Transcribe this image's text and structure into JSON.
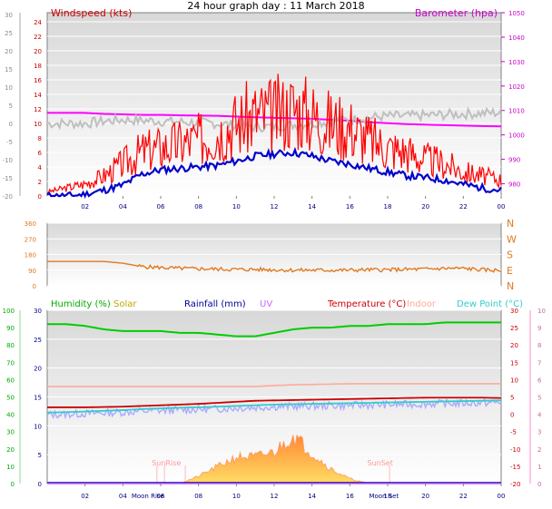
{
  "page": {
    "title": "24 hour graph day : 11 March 2018"
  },
  "colors": {
    "wind": "#ff0000",
    "avg_wind": "#0000cc",
    "baro": "#ff00ff",
    "baro_avg": "#bfbfbf",
    "direction": "#e07820",
    "humidity": "#00cc00",
    "solar": "#ffcc00",
    "rain": "#000099",
    "uv": "#cc66ff",
    "temperature": "#cc0000",
    "indoor": "#ffaa99",
    "dewpoint": "#33cccc",
    "temp_band": "#aaaaff",
    "left_axis_wind": "#cc0000",
    "right_axis_baro": "#cc00cc",
    "dir_axis": "#e07820",
    "hum_axis": "#00aa00",
    "temp_axis": "#cc0000",
    "hour_labels": "#000080"
  },
  "chart_data": [
    {
      "type": "line",
      "x": [
        0,
        1,
        2,
        3,
        4,
        5,
        6,
        7,
        8,
        9,
        10,
        11,
        12,
        13,
        14,
        15,
        16,
        17,
        18,
        19,
        20,
        21,
        22,
        23,
        24
      ],
      "x_tick_labels": [
        "02",
        "04",
        "06",
        "08",
        "10",
        "12",
        "14",
        "16",
        "18",
        "20",
        "22",
        "00"
      ],
      "y_left_label": "Windspeed (kts)",
      "y_left_ticks": [
        0,
        2,
        4,
        6,
        8,
        10,
        12,
        14,
        16,
        18,
        20,
        22,
        24
      ],
      "y_left_range": [
        0,
        25
      ],
      "y_right_label": "Barometer (hpa)",
      "y_right_ticks": [
        980,
        990,
        1000,
        1010,
        1020,
        1030,
        1040,
        1050
      ],
      "y_right_range": [
        975,
        1050
      ],
      "y_outer_ticks": [
        -20,
        -15,
        -10,
        -5,
        0,
        5,
        10,
        15,
        20,
        25,
        30
      ],
      "series": [
        {
          "values": [
            0.5,
            1,
            1.5,
            2.5,
            4,
            5.5,
            6,
            6.5,
            7,
            8,
            9,
            10,
            10,
            11,
            10,
            9,
            8.5,
            7,
            6,
            5.5,
            4.5,
            4,
            3,
            2.5,
            2
          ]
        },
        {
          "values": [
            0,
            0,
            0.2,
            0.8,
            1.5,
            3,
            3.6,
            3.8,
            4,
            4.2,
            4.8,
            5.5,
            5.8,
            6,
            5.5,
            4.8,
            4.4,
            3.8,
            3.3,
            2.8,
            2.5,
            2.2,
            1.6,
            1.1,
            0.8
          ]
        },
        {
          "values": [
            1009,
            1009,
            1009,
            1008.6,
            1008.4,
            1008.2,
            1008.2,
            1008,
            1007.9,
            1007.8,
            1007.5,
            1007.2,
            1007,
            1006.8,
            1006.6,
            1006.2,
            1005.8,
            1005.2,
            1004.8,
            1004.4,
            1004.2,
            1004,
            1003.8,
            1003.6,
            1003.5
          ]
        },
        {
          "values": [
            0,
            0,
            0,
            0.3,
            0.5,
            0.4,
            0.3,
            0.2,
            0.1,
            0,
            -0.3,
            -0.5,
            -0.4,
            -0.2,
            0,
            0.3,
            0.5,
            0.8,
            1,
            1,
            1.1,
            1.2,
            1.3,
            1.4,
            1.5
          ]
        }
      ]
    },
    {
      "type": "line",
      "x": [
        0,
        1,
        2,
        3,
        4,
        5,
        6,
        7,
        8,
        9,
        10,
        11,
        12,
        13,
        14,
        15,
        16,
        17,
        18,
        19,
        20,
        21,
        22,
        23,
        24
      ],
      "x_tick_labels": [
        "02",
        "04",
        "06",
        "08",
        "10",
        "12",
        "14",
        "16",
        "18",
        "20",
        "22",
        "00"
      ],
      "y_left_ticks": [
        0,
        90,
        180,
        270,
        360
      ],
      "y_right_labels": [
        "N",
        "E",
        "S",
        "W",
        "N"
      ],
      "y_range": [
        0,
        360
      ],
      "series": [
        {
          "values": [
            140,
            140,
            140,
            140,
            130,
            110,
            105,
            100,
            98,
            96,
            94,
            94,
            92,
            90,
            90,
            90,
            90,
            92,
            92,
            94,
            96,
            100,
            100,
            92,
            88
          ]
        }
      ]
    },
    {
      "type": "line",
      "x": [
        0,
        1,
        2,
        3,
        4,
        5,
        6,
        7,
        8,
        9,
        10,
        11,
        12,
        13,
        14,
        15,
        16,
        17,
        18,
        19,
        20,
        21,
        22,
        23,
        24
      ],
      "x_tick_labels": [
        "02",
        "04",
        "06",
        "08",
        "10",
        "12",
        "14",
        "16",
        "18",
        "20",
        "22",
        "00"
      ],
      "x_event_labels": [
        "Moon Rise",
        "Moon Set",
        "SunRise",
        "SunSet"
      ],
      "legend": [
        "Humidity (%)",
        "Solar",
        "Rainfall (mm)",
        "UV",
        "Temperature (°C)",
        "Indoor",
        "Dew Point (°C)"
      ],
      "y_outer_ticks": [
        0,
        10,
        20,
        30,
        40,
        50,
        60,
        70,
        80,
        90,
        100
      ],
      "y_inner_ticks": [
        0,
        5,
        10,
        15,
        20,
        25,
        30
      ],
      "y_right_ticks": [
        -20,
        -15,
        -10,
        -5,
        0,
        5,
        10,
        15,
        20,
        25,
        30
      ],
      "y_far_right_ticks": [
        0,
        1,
        2,
        3,
        4,
        5,
        6,
        7,
        8,
        9,
        10
      ],
      "humidity_range": [
        0,
        100
      ],
      "temperature_range": [
        -20,
        30
      ],
      "series": [
        {
          "name": "Humidity (%)",
          "values": [
            92,
            92,
            91,
            89,
            88,
            88,
            88,
            87,
            87,
            86,
            85,
            85,
            87,
            89,
            90,
            90,
            91,
            91,
            92,
            92,
            92,
            93,
            93,
            93,
            93
          ]
        },
        {
          "name": "Temperature (°C)",
          "values": [
            2,
            2,
            2,
            2.1,
            2.2,
            2.4,
            2.6,
            2.8,
            3,
            3.3,
            3.6,
            3.9,
            4,
            4.1,
            4.2,
            4.3,
            4.4,
            4.5,
            4.6,
            4.7,
            4.8,
            4.8,
            4.8,
            4.8,
            4.7
          ]
        },
        {
          "name": "Dew Point (°C)",
          "values": [
            0.5,
            0.6,
            0.8,
            1,
            1.2,
            1.5,
            1.7,
            1.9,
            2,
            2.2,
            2.4,
            2.6,
            2.8,
            2.9,
            3,
            3.1,
            3.2,
            3.3,
            3.4,
            3.5,
            3.6,
            3.7,
            3.8,
            3.9,
            4
          ]
        },
        {
          "name": "Indoor",
          "values": [
            8,
            8,
            8,
            8,
            8,
            8,
            8,
            8,
            8,
            8,
            8,
            8,
            8.3,
            8.5,
            8.6,
            8.7,
            8.8,
            8.8,
            8.8,
            8.8,
            8.8,
            8.8,
            8.8,
            8.8,
            8.8
          ]
        },
        {
          "name": "Solar",
          "values": [
            0,
            0,
            0,
            0,
            0,
            0,
            0,
            0,
            0.6,
            1.4,
            2.2,
            2.2,
            2.6,
            4,
            2.5,
            1.2,
            0.4,
            0,
            0,
            0,
            0,
            0,
            0,
            0,
            0
          ]
        },
        {
          "name": "Rainfall (mm)",
          "values": [
            0,
            0,
            0,
            0,
            0,
            0,
            0,
            0,
            0,
            0,
            0,
            0,
            0,
            0,
            0,
            0,
            0,
            0,
            0,
            0,
            0,
            0,
            0,
            0,
            0
          ]
        },
        {
          "name": "UV",
          "values": [
            0,
            0,
            0,
            0,
            0,
            0,
            0,
            0,
            0,
            0,
            0,
            0,
            0,
            0,
            0,
            0,
            0,
            0,
            0,
            0,
            0,
            0,
            0,
            0,
            0
          ]
        }
      ]
    }
  ]
}
